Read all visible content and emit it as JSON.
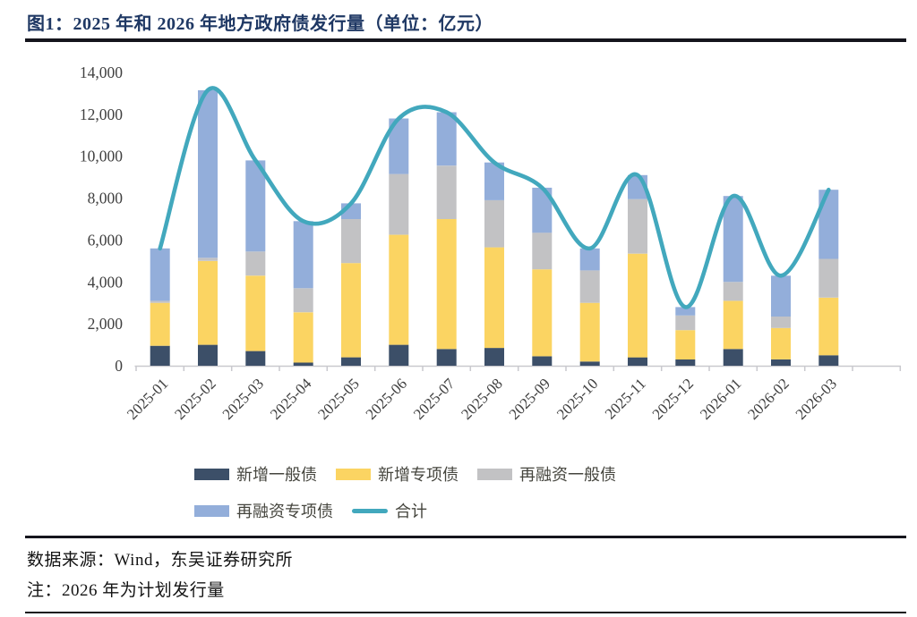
{
  "figure": {
    "title": "图1：2025 年和 2026 年地方政府债发行量（单位：亿元）",
    "source_note": "数据来源：Wind，东吴证券研究所",
    "footnote": "注：2026 年为计划发行量"
  },
  "chart_data": {
    "type": "bar",
    "subtype": "stacked-bars-with-total-line",
    "title": "图1：2025 年和 2026 年地方政府债发行量（单位：亿元）",
    "xlabel": "",
    "ylabel": "",
    "ylim": [
      0,
      14000
    ],
    "ytick_step": 2000,
    "ytick_labels": [
      "0",
      "2,000",
      "4,000",
      "6,000",
      "8,000",
      "10,000",
      "12,000",
      "14,000"
    ],
    "grid": false,
    "legend_position": "bottom",
    "stacked": true,
    "categories": [
      "2025-01",
      "2025-02",
      "2025-03",
      "2025-04",
      "2025-05",
      "2025-06",
      "2025-07",
      "2025-08",
      "2025-09",
      "2025-10",
      "2025-11",
      "2025-12",
      "2026-01",
      "2026-02",
      "2026-03"
    ],
    "series": [
      {
        "name": "新增一般债",
        "type": "bar",
        "color": "#3C4F68",
        "values": [
          950,
          1000,
          700,
          150,
          400,
          1000,
          800,
          850,
          450,
          200,
          400,
          300,
          800,
          300,
          500
        ]
      },
      {
        "name": "新增专项债",
        "type": "bar",
        "color": "#FBD462",
        "values": [
          2050,
          4000,
          3600,
          2400,
          4500,
          5250,
          6200,
          4800,
          4150,
          2800,
          4950,
          1400,
          2300,
          1500,
          2750
        ]
      },
      {
        "name": "再融资一般债",
        "type": "bar",
        "color": "#C2C2C4",
        "values": [
          100,
          150,
          1150,
          1150,
          2100,
          2900,
          2550,
          2250,
          1750,
          1550,
          2600,
          700,
          900,
          550,
          1850
        ]
      },
      {
        "name": "再融资专项债",
        "type": "bar",
        "color": "#93AEDA",
        "values": [
          2500,
          8000,
          4350,
          3200,
          750,
          2650,
          2550,
          1800,
          2150,
          1050,
          1150,
          400,
          4100,
          1950,
          3300
        ]
      },
      {
        "name": "合计",
        "type": "line",
        "color": "#42A8BD",
        "values": [
          5600,
          13150,
          9800,
          6900,
          7750,
          11800,
          12100,
          9700,
          8500,
          5600,
          9100,
          2800,
          8100,
          4300,
          8400
        ]
      }
    ]
  }
}
